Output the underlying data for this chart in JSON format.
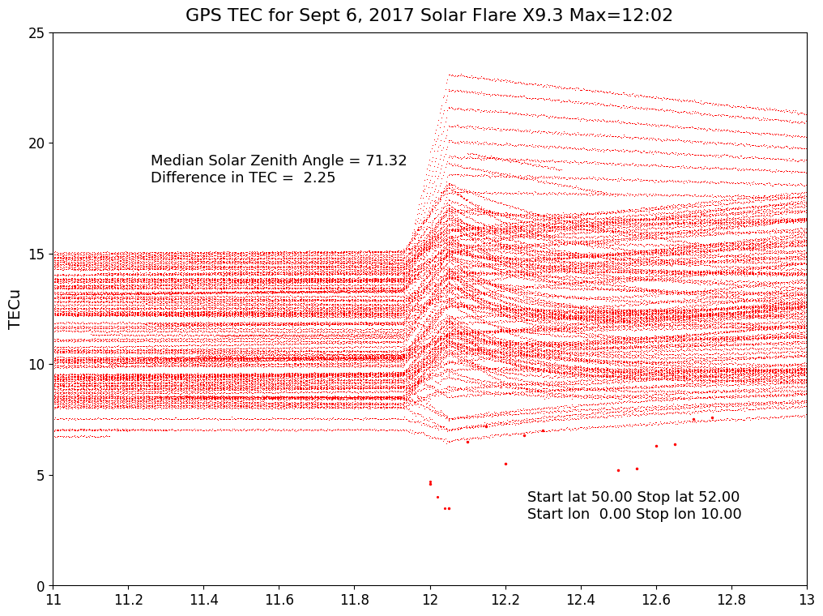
{
  "title": "GPS TEC for Sept 6, 2017 Solar Flare X9.3 Max=12:02",
  "xlabel": "",
  "ylabel": "TECu",
  "xlim": [
    11,
    13
  ],
  "ylim": [
    0,
    25
  ],
  "xticks": [
    11,
    11.2,
    11.4,
    11.6,
    11.8,
    12,
    12.2,
    12.4,
    12.6,
    12.8,
    13
  ],
  "yticks": [
    0,
    5,
    10,
    15,
    20,
    25
  ],
  "annotation_upper": "Median Solar Zenith Angle = 71.32\nDifference in TEC =  2.25",
  "annotation_lower": "Start lat 50.00 Stop lat 52.00\nStart lon  0.00 Stop lon 10.00",
  "dot_color": "#FF0000",
  "background_color": "#FFFFFF",
  "title_fontsize": 16,
  "label_fontsize": 14,
  "tick_fontsize": 12,
  "annot_fontsize": 13
}
